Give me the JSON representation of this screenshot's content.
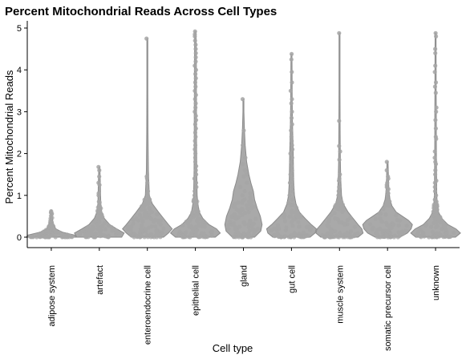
{
  "chart_data": {
    "type": "violin",
    "title": "Percent Mitochondrial Reads Across Cell Types",
    "xlabel": "Cell type",
    "ylabel": "Percent Mitochondrial Reads",
    "ylim": [
      -0.25,
      5.15
    ],
    "yticks": [
      0,
      1,
      2,
      3,
      4,
      5
    ],
    "grid": false,
    "legend": "none",
    "colors": {
      "violin_fill": "#a9a9a9",
      "violin_stroke": "#8c8c8c",
      "points": "#a6a6a6"
    },
    "categories": [
      "adipose system",
      "artefact",
      "enteroendocrine cell",
      "epithelial cell",
      "gland",
      "gut cell",
      "muscle system",
      "somatic precursor cell",
      "unknown"
    ],
    "series": [
      {
        "category": "adipose system",
        "min": 0.0,
        "max": 0.65,
        "median": 0.05,
        "density": [
          [
            0,
            1
          ],
          [
            0.05,
            0.95
          ],
          [
            0.12,
            0.45
          ],
          [
            0.2,
            0.18
          ],
          [
            0.35,
            0.07
          ],
          [
            0.5,
            0.04
          ],
          [
            0.65,
            0.02
          ]
        ],
        "points": [
          0.0,
          0.02,
          0.05,
          0.1,
          0.28,
          0.62,
          0.03,
          0.0
        ]
      },
      {
        "category": "artefact",
        "min": 0.0,
        "max": 1.68,
        "median": 0.1,
        "density": [
          [
            0,
            0.9
          ],
          [
            0.1,
            1
          ],
          [
            0.2,
            0.7
          ],
          [
            0.3,
            0.42
          ],
          [
            0.45,
            0.2
          ],
          [
            0.6,
            0.1
          ],
          [
            0.8,
            0.06
          ],
          [
            1.0,
            0.05
          ],
          [
            1.3,
            0.04
          ],
          [
            1.5,
            0.03
          ],
          [
            1.68,
            0.02
          ]
        ],
        "points": [
          1.68,
          1.6,
          1.45,
          1.3,
          1.25,
          1.05,
          1.0,
          0.85,
          0.7,
          0.6,
          0.55,
          0.5,
          0.45
        ]
      },
      {
        "category": "enteroendocrine cell",
        "min": 0.0,
        "max": 4.75,
        "median": 0.25,
        "density": [
          [
            0,
            0.65
          ],
          [
            0.1,
            0.85
          ],
          [
            0.2,
            1
          ],
          [
            0.3,
            0.85
          ],
          [
            0.45,
            0.65
          ],
          [
            0.6,
            0.45
          ],
          [
            0.8,
            0.2
          ],
          [
            1.0,
            0.08
          ],
          [
            1.3,
            0.06
          ],
          [
            1.6,
            0.04
          ],
          [
            2.5,
            0.025
          ],
          [
            3.5,
            0.02
          ],
          [
            4.75,
            0.015
          ]
        ],
        "points": [
          4.75,
          1.45,
          1.4,
          1.3,
          1.1,
          1.05,
          0.95,
          0.9,
          0.85,
          0.8,
          0.75,
          0.7,
          0.65,
          0.6,
          0.55,
          0.5,
          0.45,
          0.4,
          0.35,
          0.3,
          0.25,
          0.2,
          0.15,
          0.1,
          0.05
        ]
      },
      {
        "category": "epithelial cell",
        "min": 0.0,
        "max": 4.92,
        "median": 0.15,
        "density": [
          [
            0,
            0.8
          ],
          [
            0.1,
            1
          ],
          [
            0.2,
            0.85
          ],
          [
            0.3,
            0.55
          ],
          [
            0.45,
            0.3
          ],
          [
            0.6,
            0.16
          ],
          [
            0.8,
            0.1
          ],
          [
            1.0,
            0.07
          ],
          [
            1.5,
            0.055
          ],
          [
            2.0,
            0.05
          ],
          [
            2.5,
            0.045
          ],
          [
            3.0,
            0.045
          ],
          [
            3.5,
            0.04
          ],
          [
            4.0,
            0.04
          ],
          [
            4.5,
            0.035
          ],
          [
            4.92,
            0.03
          ]
        ],
        "points": [
          4.92,
          4.85,
          4.8,
          4.7,
          4.6,
          4.5,
          4.4,
          4.3,
          4.2,
          4.1,
          4.0,
          3.9,
          3.8,
          3.7,
          3.6,
          3.5,
          3.4,
          3.3,
          3.2,
          3.1,
          3.0,
          2.9,
          2.8,
          2.7,
          2.6,
          2.5,
          2.4,
          2.3,
          2.2,
          2.1,
          2.0,
          1.9,
          1.8,
          1.7,
          1.6,
          1.5,
          1.4,
          1.3,
          1.2,
          1.1,
          1.0,
          0.9,
          0.8
        ]
      },
      {
        "category": "gland",
        "min": 0.0,
        "max": 3.3,
        "median": 0.35,
        "density": [
          [
            0,
            0.45
          ],
          [
            0.15,
            0.7
          ],
          [
            0.3,
            0.75
          ],
          [
            0.5,
            0.68
          ],
          [
            0.7,
            0.55
          ],
          [
            0.9,
            0.45
          ],
          [
            1.1,
            0.4
          ],
          [
            1.3,
            0.3
          ],
          [
            1.5,
            0.22
          ],
          [
            1.8,
            0.13
          ],
          [
            2.2,
            0.07
          ],
          [
            2.6,
            0.04
          ],
          [
            3.0,
            0.02
          ],
          [
            3.3,
            0.015
          ]
        ],
        "points": [
          3.3,
          2.55,
          2.2,
          1.9,
          1.75,
          1.6,
          1.5,
          1.45,
          1.3,
          1.2,
          1.1,
          1.05,
          1.0,
          0.95,
          0.9,
          0.85,
          0.8,
          0.75,
          0.7,
          0.65,
          0.6,
          0.55,
          0.5,
          0.45,
          0.4,
          0.35,
          0.3,
          0.25,
          0.2,
          0.15,
          0.1,
          0.05
        ]
      },
      {
        "category": "gut cell",
        "min": 0.0,
        "max": 4.38,
        "median": 0.2,
        "density": [
          [
            0,
            0.75
          ],
          [
            0.1,
            0.95
          ],
          [
            0.2,
            1
          ],
          [
            0.3,
            0.8
          ],
          [
            0.45,
            0.55
          ],
          [
            0.6,
            0.32
          ],
          [
            0.8,
            0.18
          ],
          [
            1.0,
            0.12
          ],
          [
            1.3,
            0.09
          ],
          [
            1.6,
            0.08
          ],
          [
            2.0,
            0.07
          ],
          [
            2.4,
            0.055
          ],
          [
            2.8,
            0.04
          ],
          [
            3.3,
            0.03
          ],
          [
            3.8,
            0.025
          ],
          [
            4.38,
            0.02
          ]
        ],
        "points": [
          4.38,
          4.25,
          3.95,
          3.7,
          3.5,
          3.3,
          3.2,
          3.0,
          2.85,
          2.7,
          2.55,
          2.4,
          2.3,
          2.2,
          2.1,
          2.0,
          1.9,
          1.8,
          1.7,
          1.6,
          1.5,
          1.4,
          1.3,
          1.2,
          1.1,
          1.0,
          0.9
        ]
      },
      {
        "category": "muscle system",
        "min": 0.0,
        "max": 4.88,
        "median": 0.15,
        "density": [
          [
            0,
            0.75
          ],
          [
            0.1,
            0.95
          ],
          [
            0.2,
            0.9
          ],
          [
            0.3,
            0.75
          ],
          [
            0.45,
            0.55
          ],
          [
            0.6,
            0.35
          ],
          [
            0.8,
            0.15
          ],
          [
            1.0,
            0.08
          ],
          [
            1.4,
            0.05
          ],
          [
            1.8,
            0.035
          ],
          [
            2.5,
            0.025
          ],
          [
            3.5,
            0.02
          ],
          [
            4.88,
            0.015
          ]
        ],
        "points": [
          4.88,
          2.78,
          2.18,
          2.05,
          1.85,
          1.5,
          1.4,
          1.35,
          1.2,
          1.1,
          1.0,
          0.95,
          0.9,
          0.85,
          0.8,
          0.75,
          0.7
        ]
      },
      {
        "category": "somatic precursor cell",
        "min": 0.0,
        "max": 1.8,
        "median": 0.3,
        "density": [
          [
            0,
            0.5
          ],
          [
            0.1,
            0.8
          ],
          [
            0.2,
            0.95
          ],
          [
            0.3,
            1
          ],
          [
            0.4,
            0.85
          ],
          [
            0.5,
            0.6
          ],
          [
            0.6,
            0.35
          ],
          [
            0.75,
            0.18
          ],
          [
            0.9,
            0.1
          ],
          [
            1.1,
            0.06
          ],
          [
            1.4,
            0.04
          ],
          [
            1.6,
            0.03
          ],
          [
            1.8,
            0.02
          ]
        ],
        "points": [
          1.8,
          1.6,
          1.45,
          1.4,
          1.3,
          1.25,
          1.2,
          1.15,
          1.1,
          1.05,
          1.0,
          0.95,
          0.9,
          0.85,
          0.8
        ]
      },
      {
        "category": "unknown",
        "min": 0.0,
        "max": 4.88,
        "median": 0.1,
        "density": [
          [
            0,
            0.8
          ],
          [
            0.1,
            1
          ],
          [
            0.2,
            0.82
          ],
          [
            0.3,
            0.5
          ],
          [
            0.45,
            0.25
          ],
          [
            0.6,
            0.12
          ],
          [
            0.8,
            0.07
          ],
          [
            1.0,
            0.05
          ],
          [
            1.5,
            0.04
          ],
          [
            2.0,
            0.035
          ],
          [
            2.5,
            0.03
          ],
          [
            3.0,
            0.03
          ],
          [
            3.5,
            0.025
          ],
          [
            4.0,
            0.025
          ],
          [
            4.5,
            0.02
          ],
          [
            4.88,
            0.015
          ]
        ],
        "points": [
          4.88,
          4.8,
          4.5,
          4.4,
          4.1,
          3.95,
          3.7,
          3.6,
          3.45,
          3.1,
          3.0,
          2.8,
          2.6,
          2.4,
          2.35,
          2.05,
          1.9,
          1.8,
          1.75,
          1.6,
          1.5,
          1.35,
          1.3,
          1.2,
          1.1,
          1.0,
          0.9,
          0.85
        ]
      }
    ]
  }
}
